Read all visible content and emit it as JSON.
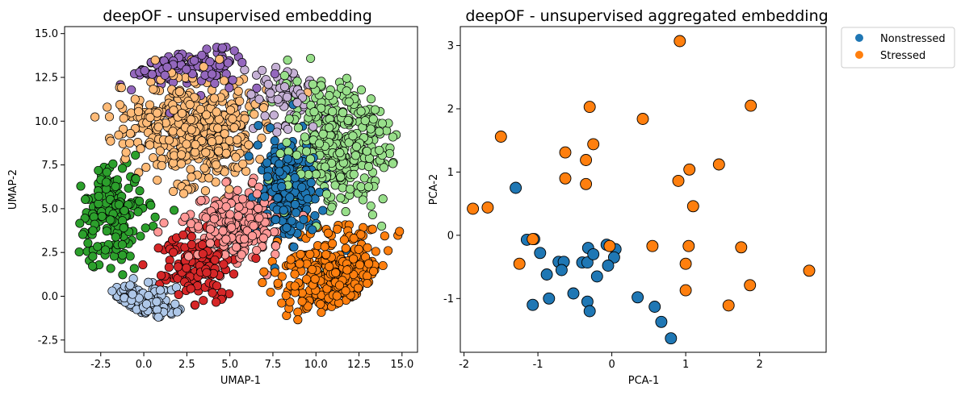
{
  "chart_data": [
    {
      "type": "scatter",
      "title": "deepOF - unsupervised embedding",
      "xlabel": "UMAP-1",
      "ylabel": "UMAP-2",
      "xlim": [
        -4.6,
        15.9
      ],
      "ylim": [
        -3.2,
        15.4
      ],
      "xticks": [
        -2.5,
        0.0,
        2.5,
        5.0,
        7.5,
        10.0,
        12.5,
        15.0
      ],
      "yticks": [
        -2.5,
        0.0,
        2.5,
        5.0,
        7.5,
        10.0,
        12.5,
        15.0
      ],
      "clusters": [
        {
          "color": "#9467bd",
          "center": [
            2.2,
            13.2
          ],
          "spread": [
            2.6,
            0.9
          ],
          "count": 120
        },
        {
          "color": "#c5b0d5",
          "center": [
            8.0,
            11.5
          ],
          "spread": [
            1.4,
            1.1
          ],
          "count": 70
        },
        {
          "color": "#98df8a",
          "center": [
            11.4,
            8.9
          ],
          "spread": [
            2.2,
            2.6
          ],
          "count": 380
        },
        {
          "color": "#1f77b4",
          "center": [
            8.4,
            6.3
          ],
          "spread": [
            1.3,
            2.0
          ],
          "count": 190
        },
        {
          "color": "#ffbb78",
          "center": [
            3.0,
            9.5
          ],
          "spread": [
            2.8,
            2.0
          ],
          "count": 460
        },
        {
          "color": "#2ca02c",
          "center": [
            -1.9,
            4.6
          ],
          "spread": [
            1.3,
            1.9
          ],
          "count": 170
        },
        {
          "color": "#ff9896",
          "center": [
            5.3,
            4.0
          ],
          "spread": [
            1.9,
            1.4
          ],
          "count": 230
        },
        {
          "color": "#d62728",
          "center": [
            3.1,
            1.6
          ],
          "spread": [
            1.4,
            1.2
          ],
          "count": 140
        },
        {
          "color": "#ff7f0e",
          "center": [
            11.4,
            1.0
          ],
          "spread": [
            2.4,
            1.6
          ],
          "count": 330
        },
        {
          "color": "#aec7e8",
          "center": [
            -0.6,
            -0.5
          ],
          "spread": [
            1.6,
            0.7
          ],
          "count": 150
        }
      ]
    },
    {
      "type": "scatter",
      "title": "deepOF - unsupervised aggregated embedding",
      "xlabel": "PCA-1",
      "ylabel": "PCA-2",
      "xlim": [
        -2.05,
        2.9
      ],
      "ylim": [
        -1.85,
        3.3
      ],
      "xticks": [
        -2,
        -1,
        0,
        1,
        2
      ],
      "yticks": [
        -1,
        0,
        1,
        2,
        3
      ],
      "legend": {
        "position": "outside upper right",
        "entries": [
          "Nonstressed",
          "Stressed"
        ]
      },
      "series": [
        {
          "name": "Nonstressed",
          "color": "#1f77b4",
          "points": [
            [
              -1.3,
              0.75
            ],
            [
              -1.15,
              -0.07
            ],
            [
              -1.05,
              -0.06
            ],
            [
              -0.97,
              -0.28
            ],
            [
              -0.88,
              -0.62
            ],
            [
              -0.72,
              -0.42
            ],
            [
              -0.65,
              -0.42
            ],
            [
              -0.68,
              -0.55
            ],
            [
              -0.4,
              -0.43
            ],
            [
              -0.33,
              -0.43
            ],
            [
              -0.32,
              -0.2
            ],
            [
              -0.25,
              -0.3
            ],
            [
              -0.07,
              -0.15
            ],
            [
              0.05,
              -0.22
            ],
            [
              0.03,
              -0.35
            ],
            [
              -0.05,
              -0.48
            ],
            [
              -0.2,
              -0.65
            ],
            [
              -0.52,
              -0.92
            ],
            [
              -0.33,
              -1.05
            ],
            [
              -0.3,
              -1.2
            ],
            [
              -1.07,
              -1.1
            ],
            [
              -0.85,
              -1.0
            ],
            [
              0.35,
              -0.98
            ],
            [
              0.58,
              -1.13
            ],
            [
              0.67,
              -1.37
            ],
            [
              0.8,
              -1.63
            ]
          ]
        },
        {
          "name": "Stressed",
          "color": "#ff7f0e",
          "points": [
            [
              0.92,
              3.07
            ],
            [
              1.88,
              2.05
            ],
            [
              -0.3,
              2.03
            ],
            [
              0.42,
              1.84
            ],
            [
              -1.5,
              1.56
            ],
            [
              -0.25,
              1.44
            ],
            [
              -0.63,
              1.31
            ],
            [
              -0.35,
              1.19
            ],
            [
              1.45,
              1.12
            ],
            [
              1.05,
              1.04
            ],
            [
              -0.63,
              0.9
            ],
            [
              0.9,
              0.86
            ],
            [
              -0.35,
              0.81
            ],
            [
              1.1,
              0.46
            ],
            [
              -1.88,
              0.42
            ],
            [
              -1.68,
              0.44
            ],
            [
              -1.07,
              -0.06
            ],
            [
              -0.03,
              -0.17
            ],
            [
              0.55,
              -0.17
            ],
            [
              1.04,
              -0.17
            ],
            [
              1.75,
              -0.19
            ],
            [
              -1.25,
              -0.45
            ],
            [
              1.0,
              -0.45
            ],
            [
              2.67,
              -0.56
            ],
            [
              1.87,
              -0.79
            ],
            [
              1.0,
              -0.87
            ],
            [
              1.58,
              -1.11
            ]
          ]
        }
      ]
    }
  ]
}
